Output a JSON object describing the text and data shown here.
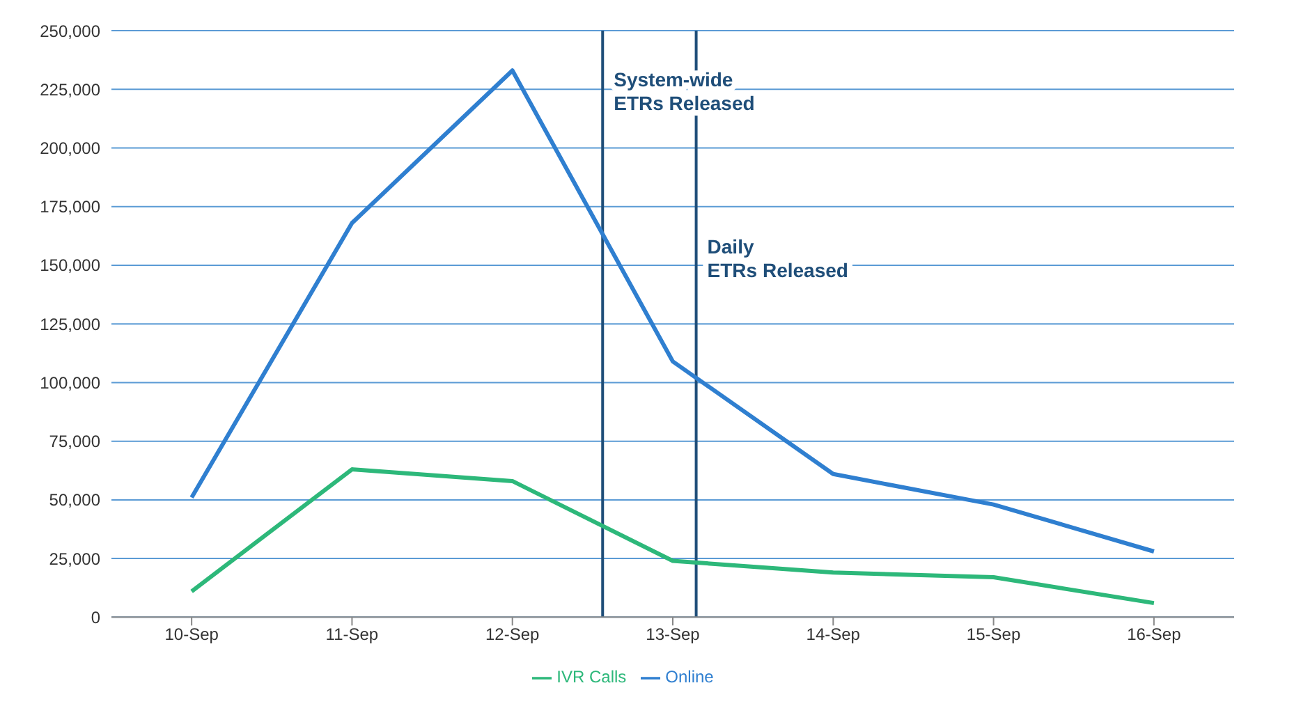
{
  "chart_data": {
    "type": "line",
    "x": [
      "--09-10",
      "--09-11",
      "--09-12",
      "--09-13",
      "--09-14",
      "--09-15",
      "--09-16"
    ],
    "xlim": [
      "--09-09T12:00",
      "--09-16T12:00"
    ],
    "xticks": [
      {
        "value": "--09-10",
        "label": "10-Sep"
      },
      {
        "value": "--09-11",
        "label": "11-Sep"
      },
      {
        "value": "--09-12",
        "label": "12-Sep"
      },
      {
        "value": "--09-13",
        "label": "13-Sep"
      },
      {
        "value": "--09-14",
        "label": "14-Sep"
      },
      {
        "value": "--09-15",
        "label": "15-Sep"
      },
      {
        "value": "--09-16",
        "label": "16-Sep"
      }
    ],
    "ylim": [
      0,
      250000
    ],
    "yticks": [
      0,
      {
        "value": 25000,
        "label": "25,000"
      },
      {
        "value": 50000,
        "label": "50,000"
      },
      {
        "value": 75000,
        "label": "75,000"
      },
      {
        "value": 100000,
        "label": "100,000"
      },
      {
        "value": 125000,
        "label": "125,000"
      },
      {
        "value": 150000,
        "label": "150,000"
      },
      {
        "value": 175000,
        "label": "175,000"
      },
      {
        "value": 200000,
        "label": "200,000"
      },
      {
        "value": 225000,
        "label": "225,000"
      },
      {
        "value": 250000,
        "label": "250,000"
      }
    ],
    "series": [
      {
        "name": "IVR Calls",
        "color": "#2db87a",
        "values": [
          11000,
          63000,
          58000,
          24000,
          19000,
          17000,
          6000
        ]
      },
      {
        "name": "Online",
        "color": "#2f7fd0",
        "values": [
          51000,
          168000,
          233000,
          109000,
          61000,
          48000,
          28000
        ]
      }
    ],
    "ref_lines": [
      {
        "axis": "x",
        "value": "--09-12T13:30",
        "label": "System-wide ETRs Released",
        "color": "#1f4e79"
      },
      {
        "axis": "x",
        "value": "--09-13T03:30",
        "label": "Daily ETRs Released",
        "color": "#1f4e79"
      }
    ],
    "grid": "y",
    "legend": "bottom",
    "marker": "none",
    "line_style": "solid"
  }
}
